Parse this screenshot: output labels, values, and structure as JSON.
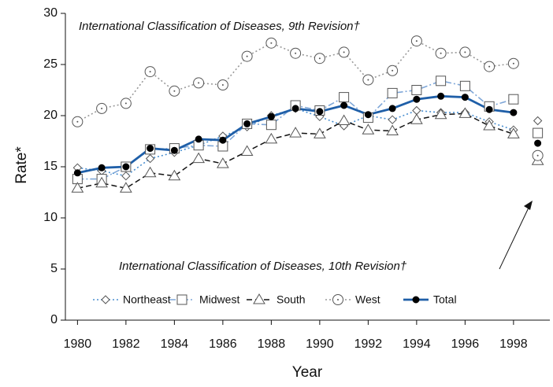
{
  "chart_data": {
    "type": "line",
    "y_label": "Rate*",
    "x_label": "Year",
    "annotations": [
      "International Classification of Diseases, 9th Revision†",
      "International Classification of Diseases, 10th Revision†"
    ],
    "x": [
      1980,
      1981,
      1982,
      1983,
      1984,
      1985,
      1986,
      1987,
      1988,
      1989,
      1990,
      1991,
      1992,
      1993,
      1994,
      1995,
      1996,
      1997,
      1998
    ],
    "x2": [
      1999
    ],
    "xlim": [
      1979.5,
      1999.5
    ],
    "xticks": [
      1980,
      1982,
      1984,
      1986,
      1988,
      1990,
      1992,
      1994,
      1996,
      1998
    ],
    "ylim": [
      0,
      30
    ],
    "yticks": [
      0,
      5,
      10,
      15,
      20,
      25,
      30
    ],
    "series": [
      {
        "name": "Northeast",
        "color": "#4a8fd0",
        "dash": "2,3",
        "width": 1.6,
        "marker": "diamond",
        "values": [
          14.9,
          14.6,
          14.1,
          15.8,
          16.4,
          17.1,
          18.0,
          18.9,
          20.0,
          20.7,
          19.9,
          19.0,
          20.0,
          19.6,
          20.5,
          20.3,
          20.3,
          19.4,
          18.6
        ],
        "values2": [
          19.5
        ]
      },
      {
        "name": "Midwest",
        "color": "#7fa7d8",
        "dash": "8,3,2,3",
        "width": 1.6,
        "marker": "square",
        "values": [
          13.8,
          13.8,
          15.0,
          16.7,
          16.8,
          17.1,
          17.0,
          19.2,
          19.1,
          21.0,
          20.5,
          21.8,
          19.8,
          22.2,
          22.5,
          23.4,
          22.9,
          20.9,
          21.6
        ],
        "values2": [
          18.3
        ]
      },
      {
        "name": "South",
        "color": "#111111",
        "dash": "7,4",
        "width": 1.5,
        "marker": "triangle",
        "values": [
          12.9,
          13.4,
          12.9,
          14.4,
          14.1,
          15.8,
          15.3,
          16.5,
          17.7,
          18.3,
          18.2,
          19.5,
          18.6,
          18.5,
          19.6,
          20.1,
          20.2,
          19.0,
          18.2
        ],
        "values2": [
          15.6
        ]
      },
      {
        "name": "West",
        "color": "#999999",
        "dash": "2,3",
        "width": 1.6,
        "marker": "circle",
        "values": [
          19.4,
          20.7,
          21.2,
          24.3,
          22.4,
          23.2,
          23.0,
          25.8,
          27.1,
          26.1,
          25.6,
          26.2,
          23.5,
          24.4,
          27.3,
          26.1,
          26.2,
          24.8,
          25.1
        ],
        "values2": [
          16.1
        ]
      },
      {
        "name": "Total",
        "color": "#1f5fa8",
        "dash": "",
        "width": 2.8,
        "marker": "dot",
        "values": [
          14.4,
          14.9,
          15.0,
          16.8,
          16.6,
          17.7,
          17.6,
          19.2,
          19.9,
          20.7,
          20.4,
          21.0,
          20.1,
          20.7,
          21.6,
          21.9,
          21.8,
          20.6,
          20.3
        ],
        "values2": [
          17.3
        ]
      }
    ]
  }
}
